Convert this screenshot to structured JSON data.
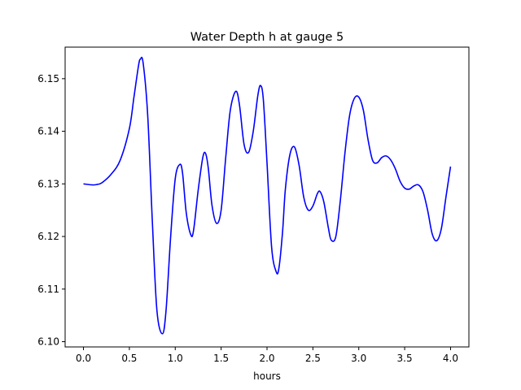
{
  "chart_data": {
    "type": "line",
    "title": "Water Depth h at gauge 5",
    "xlabel": "hours",
    "ylabel": "",
    "xlim": [
      -0.2,
      4.2
    ],
    "ylim": [
      6.099,
      6.156
    ],
    "xticks": [
      0.0,
      0.5,
      1.0,
      1.5,
      2.0,
      2.5,
      3.0,
      3.5,
      4.0
    ],
    "xtick_labels": [
      "0.0",
      "0.5",
      "1.0",
      "1.5",
      "2.0",
      "2.5",
      "3.0",
      "3.5",
      "4.0"
    ],
    "yticks": [
      6.1,
      6.11,
      6.12,
      6.13,
      6.14,
      6.15
    ],
    "ytick_labels": [
      "6.10",
      "6.11",
      "6.12",
      "6.13",
      "6.14",
      "6.15"
    ],
    "grid": false,
    "legend": "none",
    "series": [
      {
        "name": "",
        "color": "#0000ff",
        "x": [
          0.0,
          0.1,
          0.15,
          0.2,
          0.3,
          0.4,
          0.5,
          0.55,
          0.6,
          0.62,
          0.65,
          0.7,
          0.75,
          0.8,
          0.86,
          0.9,
          0.95,
          1.0,
          1.05,
          1.08,
          1.12,
          1.17,
          1.2,
          1.25,
          1.3,
          1.33,
          1.36,
          1.4,
          1.45,
          1.5,
          1.55,
          1.6,
          1.66,
          1.7,
          1.75,
          1.8,
          1.85,
          1.9,
          1.93,
          1.96,
          2.0,
          2.05,
          2.1,
          2.13,
          2.17,
          2.2,
          2.25,
          2.3,
          2.35,
          2.4,
          2.45,
          2.5,
          2.55,
          2.58,
          2.62,
          2.67,
          2.7,
          2.75,
          2.8,
          2.85,
          2.9,
          2.95,
          3.0,
          3.05,
          3.1,
          3.15,
          3.2,
          3.25,
          3.3,
          3.35,
          3.4,
          3.45,
          3.5,
          3.55,
          3.6,
          3.65,
          3.7,
          3.75,
          3.8,
          3.85,
          3.9,
          3.95,
          4.0
        ],
        "values": [
          6.13,
          6.1298,
          6.1299,
          6.1302,
          6.1318,
          6.1345,
          6.1405,
          6.1465,
          6.1525,
          6.1537,
          6.153,
          6.143,
          6.123,
          6.106,
          6.1015,
          6.106,
          6.12,
          6.131,
          6.1337,
          6.132,
          6.1245,
          6.1203,
          6.1212,
          6.1288,
          6.135,
          6.1358,
          6.133,
          6.126,
          6.1225,
          6.125,
          6.135,
          6.144,
          6.1476,
          6.145,
          6.1375,
          6.136,
          6.14,
          6.1468,
          6.1487,
          6.146,
          6.134,
          6.118,
          6.1133,
          6.114,
          6.121,
          6.129,
          6.1356,
          6.137,
          6.1335,
          6.1275,
          6.125,
          6.1258,
          6.1282,
          6.1285,
          6.1265,
          6.1215,
          6.1193,
          6.12,
          6.127,
          6.136,
          6.143,
          6.1462,
          6.1465,
          6.144,
          6.1385,
          6.1345,
          6.134,
          6.135,
          6.1353,
          6.1345,
          6.1328,
          6.1305,
          6.1292,
          6.129,
          6.1296,
          6.1298,
          6.1285,
          6.125,
          6.1205,
          6.1192,
          6.1215,
          6.1275,
          6.1333
        ]
      }
    ]
  }
}
